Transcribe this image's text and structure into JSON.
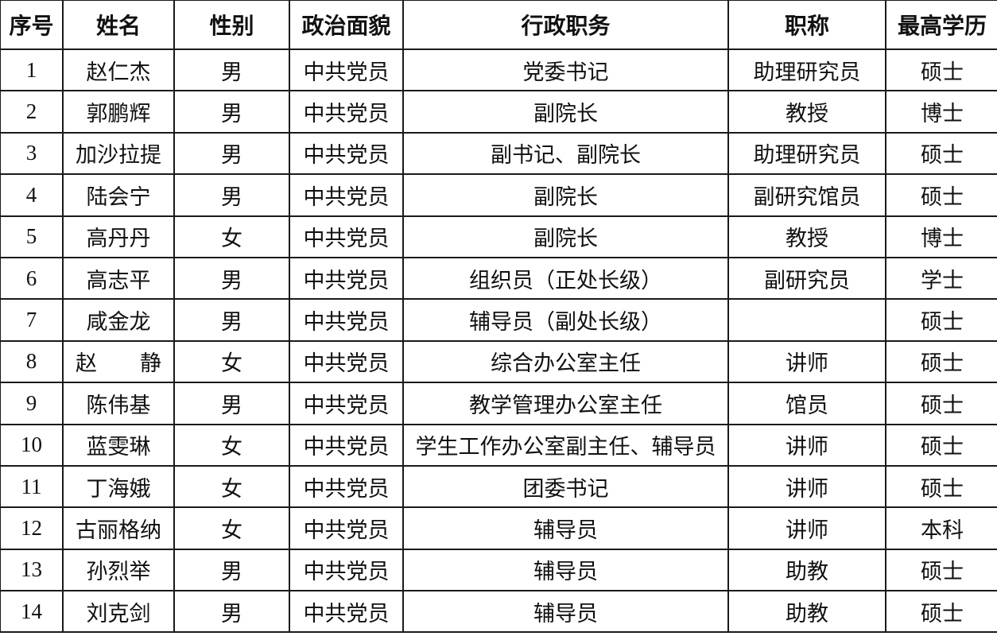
{
  "table": {
    "headers": [
      "序号",
      "姓名",
      "性别",
      "政治面貌",
      "行政职务",
      "职称",
      "最高学历"
    ],
    "rows": [
      [
        "1",
        "赵仁杰",
        "男",
        "中共党员",
        "党委书记",
        "助理研究员",
        "硕士"
      ],
      [
        "2",
        "郭鹏辉",
        "男",
        "中共党员",
        "副院长",
        "教授",
        "博士"
      ],
      [
        "3",
        "加沙拉提",
        "男",
        "中共党员",
        "副书记、副院长",
        "助理研究员",
        "硕士"
      ],
      [
        "4",
        "陆会宁",
        "男",
        "中共党员",
        "副院长",
        "副研究馆员",
        "硕士"
      ],
      [
        "5",
        "高丹丹",
        "女",
        "中共党员",
        "副院长",
        "教授",
        "博士"
      ],
      [
        "6",
        "高志平",
        "男",
        "中共党员",
        "组织员（正处长级）",
        "副研究员",
        "学士"
      ],
      [
        "7",
        "咸金龙",
        "男",
        "中共党员",
        "辅导员（副处长级）",
        "",
        "硕士"
      ],
      [
        "8",
        "赵　　静",
        "女",
        "中共党员",
        "综合办公室主任",
        "讲师",
        "硕士"
      ],
      [
        "9",
        "陈伟基",
        "男",
        "中共党员",
        "教学管理办公室主任",
        "馆员",
        "硕士"
      ],
      [
        "10",
        "蓝雯琳",
        "女",
        "中共党员",
        "学生工作办公室副主任、辅导员",
        "讲师",
        "硕士"
      ],
      [
        "11",
        "丁海娥",
        "女",
        "中共党员",
        "团委书记",
        "讲师",
        "硕士"
      ],
      [
        "12",
        "古丽格纳",
        "女",
        "中共党员",
        "辅导员",
        "讲师",
        "本科"
      ],
      [
        "13",
        "孙烈举",
        "男",
        "中共党员",
        "辅导员",
        "助教",
        "硕士"
      ],
      [
        "14",
        "刘克剑",
        "男",
        "中共党员",
        "辅导员",
        "助教",
        "硕士"
      ]
    ]
  }
}
